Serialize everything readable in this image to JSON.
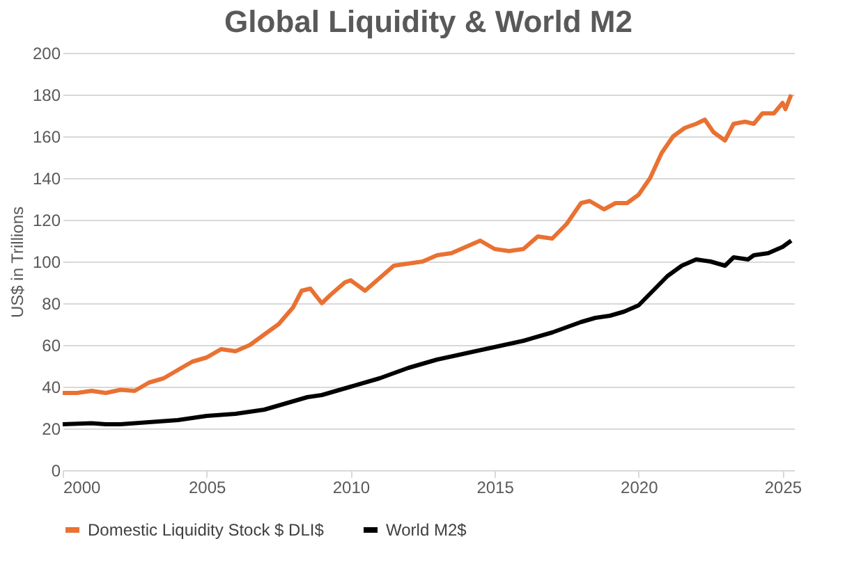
{
  "chart_data": {
    "type": "line",
    "title": "Global Liquidity & World M2",
    "ylabel": "US$ in Trillions",
    "xlim": [
      2000,
      2025.4
    ],
    "xticks": [
      2000,
      2005,
      2010,
      2015,
      2020,
      2025
    ],
    "ylim": [
      0,
      200
    ],
    "yticks": [
      0,
      20,
      40,
      60,
      80,
      100,
      120,
      140,
      160,
      180,
      200
    ],
    "grid": "y",
    "legend": "bottom",
    "marker": "none",
    "line_style": "solid",
    "series": [
      {
        "name": "Domestic Liquidity Stock $ DLI$",
        "color": "#e97132",
        "x": [
          2000,
          2000.5,
          2001,
          2001.5,
          2002,
          2002.5,
          2003,
          2003.5,
          2004,
          2004.5,
          2005,
          2005.5,
          2006,
          2006.5,
          2007,
          2007.5,
          2008,
          2008.3,
          2008.6,
          2009,
          2009.3,
          2009.8,
          2010,
          2010.5,
          2011,
          2011.5,
          2012,
          2012.5,
          2013,
          2013.5,
          2014,
          2014.5,
          2015,
          2015.5,
          2016,
          2016.5,
          2017,
          2017.5,
          2018,
          2018.3,
          2018.8,
          2019.2,
          2019.6,
          2020,
          2020.4,
          2020.8,
          2021.2,
          2021.6,
          2022,
          2022.3,
          2022.6,
          2023,
          2023.3,
          2023.7,
          2024,
          2024.3,
          2024.7,
          2025,
          2025.1,
          2025.3
        ],
        "values": [
          37,
          37,
          38,
          37,
          38.5,
          38,
          42,
          44,
          48,
          52,
          54,
          58,
          57,
          60,
          65,
          70,
          78,
          86,
          87,
          80,
          84,
          90,
          91,
          86,
          92,
          98,
          99,
          100,
          103,
          104,
          107,
          110,
          106,
          105,
          106,
          112,
          111,
          118,
          128,
          129,
          125,
          128,
          128,
          132,
          140,
          152,
          160,
          164,
          166,
          168,
          162,
          158,
          166,
          167,
          166,
          171,
          171,
          176,
          173,
          180
        ]
      },
      {
        "name": "World M2$",
        "color": "#000000",
        "x": [
          2000,
          2001,
          2001.5,
          2002,
          2002.5,
          2003,
          2004,
          2005,
          2006,
          2007,
          2008,
          2008.5,
          2009,
          2010,
          2011,
          2012,
          2013,
          2014,
          2015,
          2016,
          2017,
          2018,
          2018.5,
          2019,
          2019.5,
          2020,
          2020.5,
          2021,
          2021.5,
          2022,
          2022.5,
          2023,
          2023.3,
          2023.8,
          2024,
          2024.5,
          2025,
          2025.3
        ],
        "values": [
          22,
          22.5,
          22,
          22,
          22.5,
          23,
          24,
          26,
          27,
          29,
          33,
          35,
          36,
          40,
          44,
          49,
          53,
          56,
          59,
          62,
          66,
          71,
          73,
          74,
          76,
          79,
          86,
          93,
          98,
          101,
          100,
          98,
          102,
          101,
          103,
          104,
          107,
          110
        ]
      }
    ]
  }
}
